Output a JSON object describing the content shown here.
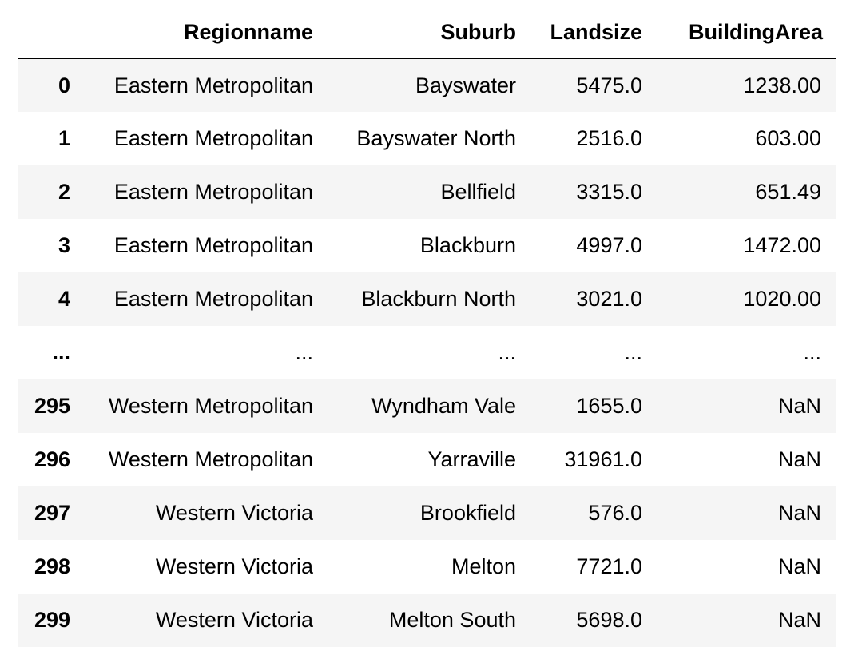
{
  "table": {
    "index_header": "",
    "columns": [
      "Regionname",
      "Suburb",
      "Landsize",
      "BuildingArea"
    ],
    "rows": [
      {
        "index": "0",
        "Regionname": "Eastern Metropolitan",
        "Suburb": "Bayswater",
        "Landsize": "5475.0",
        "BuildingArea": "1238.00"
      },
      {
        "index": "1",
        "Regionname": "Eastern Metropolitan",
        "Suburb": "Bayswater North",
        "Landsize": "2516.0",
        "BuildingArea": "603.00"
      },
      {
        "index": "2",
        "Regionname": "Eastern Metropolitan",
        "Suburb": "Bellfield",
        "Landsize": "3315.0",
        "BuildingArea": "651.49"
      },
      {
        "index": "3",
        "Regionname": "Eastern Metropolitan",
        "Suburb": "Blackburn",
        "Landsize": "4997.0",
        "BuildingArea": "1472.00"
      },
      {
        "index": "4",
        "Regionname": "Eastern Metropolitan",
        "Suburb": "Blackburn North",
        "Landsize": "3021.0",
        "BuildingArea": "1020.00"
      },
      {
        "index": "...",
        "Regionname": "...",
        "Suburb": "...",
        "Landsize": "...",
        "BuildingArea": "..."
      },
      {
        "index": "295",
        "Regionname": "Western Metropolitan",
        "Suburb": "Wyndham Vale",
        "Landsize": "1655.0",
        "BuildingArea": "NaN"
      },
      {
        "index": "296",
        "Regionname": "Western Metropolitan",
        "Suburb": "Yarraville",
        "Landsize": "31961.0",
        "BuildingArea": "NaN"
      },
      {
        "index": "297",
        "Regionname": "Western Victoria",
        "Suburb": "Brookfield",
        "Landsize": "576.0",
        "BuildingArea": "NaN"
      },
      {
        "index": "298",
        "Regionname": "Western Victoria",
        "Suburb": "Melton",
        "Landsize": "7721.0",
        "BuildingArea": "NaN"
      },
      {
        "index": "299",
        "Regionname": "Western Victoria",
        "Suburb": "Melton South",
        "Landsize": "5698.0",
        "BuildingArea": "NaN"
      }
    ]
  }
}
